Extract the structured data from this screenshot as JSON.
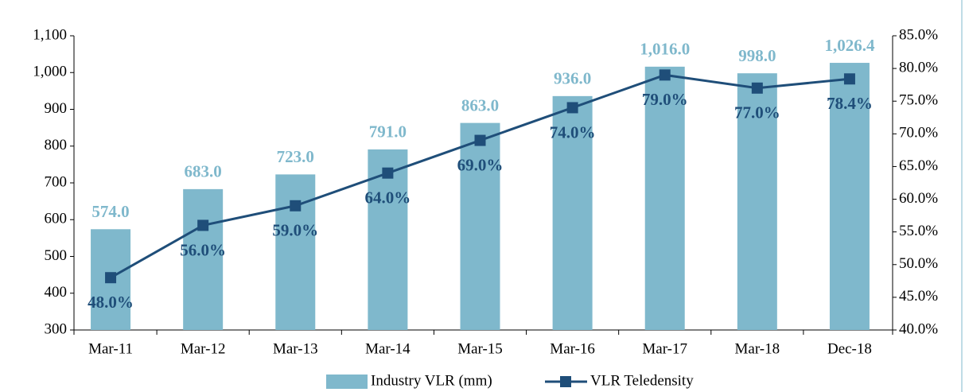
{
  "chart_data": {
    "type": "bar",
    "categories": [
      "Mar-11",
      "Mar-12",
      "Mar-13",
      "Mar-14",
      "Mar-15",
      "Mar-16",
      "Mar-17",
      "Mar-18",
      "Dec-18"
    ],
    "series": [
      {
        "name": "Industry VLR (mm)",
        "color": "#7fb8cc",
        "values": [
          574,
          683,
          723,
          791,
          863,
          936,
          1016,
          998,
          1026.4
        ],
        "value_labels": [
          "574.0",
          "683.0",
          "723.0",
          "791.0",
          "863.0",
          "936.0",
          "1,016.0",
          "998.0",
          "1,026.4"
        ]
      },
      {
        "name": "VLR Teledensity",
        "color": "#1f4e79",
        "type": "line",
        "axis": "y2",
        "values": [
          48,
          56,
          59,
          64,
          69,
          74,
          79,
          77,
          78.4
        ],
        "value_labels": [
          "48.0%",
          "56.0%",
          "59.0%",
          "64.0%",
          "69.0%",
          "74.0%",
          "79.0%",
          "77.0%",
          "78.4%"
        ]
      }
    ],
    "ylim": [
      300,
      1100
    ],
    "yticks": [
      300,
      400,
      500,
      600,
      700,
      800,
      900,
      {
        "value": 1000,
        "label": "1,000"
      },
      {
        "value": 1100,
        "label": "1,100"
      }
    ],
    "y2lim": [
      40,
      85
    ],
    "y2ticks": [
      {
        "value": 40,
        "label": "40.0%"
      },
      {
        "value": 45,
        "label": "45.0%"
      },
      {
        "value": 50,
        "label": "50.0%"
      },
      {
        "value": 55,
        "label": "55.0%"
      },
      {
        "value": 60,
        "label": "60.0%"
      },
      {
        "value": 65,
        "label": "65.0%"
      },
      {
        "value": 70,
        "label": "70.0%"
      },
      {
        "value": 75,
        "label": "75.0%"
      },
      {
        "value": 80,
        "label": "80.0%"
      },
      {
        "value": 85,
        "label": "85.0%"
      }
    ],
    "legend": "bottom"
  }
}
